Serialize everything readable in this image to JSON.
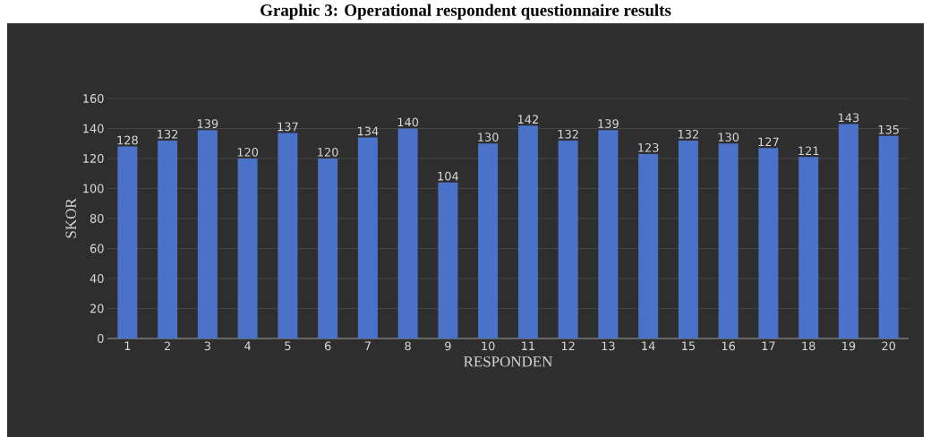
{
  "chart_data": {
    "type": "bar",
    "title": "Graphic 3: Operational respondent questionnaire results",
    "xlabel": "RESPONDEN",
    "ylabel": "SKOR",
    "categories": [
      "1",
      "2",
      "3",
      "4",
      "5",
      "6",
      "7",
      "8",
      "9",
      "10",
      "11",
      "12",
      "13",
      "14",
      "15",
      "16",
      "17",
      "18",
      "19",
      "20"
    ],
    "values": [
      128,
      132,
      139,
      120,
      137,
      120,
      134,
      140,
      104,
      130,
      142,
      132,
      139,
      123,
      132,
      130,
      127,
      121,
      143,
      135
    ],
    "color": "#4a72c8",
    "ylim": [
      0,
      160
    ],
    "yticks": [
      0,
      20,
      40,
      60,
      80,
      100,
      120,
      140,
      160
    ],
    "grid": "y",
    "data_labels": true
  }
}
